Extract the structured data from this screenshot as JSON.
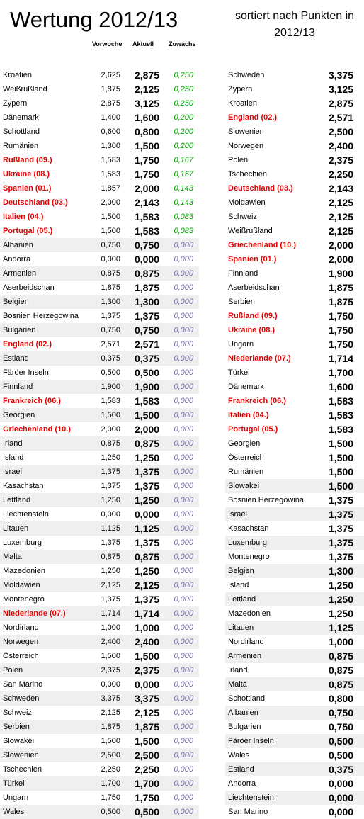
{
  "title": "Wertung 2012/13",
  "subtitle": "sortiert nach Punkten in 2012/13",
  "headers": {
    "prev": "Vorwoche",
    "current": "Aktuell",
    "gain": "Zuwachs"
  },
  "colors": {
    "highlight": "#e60000",
    "positive": "#00a000",
    "zero": "#7a6aa8",
    "shade": "#efefef"
  },
  "left_rows": [
    {
      "name": "Kroatien",
      "prev": "2,625",
      "cur": "2,875",
      "gain": "0,250",
      "red": false,
      "shade": false
    },
    {
      "name": "Weißrußland",
      "prev": "1,875",
      "cur": "2,125",
      "gain": "0,250",
      "red": false,
      "shade": false
    },
    {
      "name": "Zypern",
      "prev": "2,875",
      "cur": "3,125",
      "gain": "0,250",
      "red": false,
      "shade": false
    },
    {
      "name": "Dänemark",
      "prev": "1,400",
      "cur": "1,600",
      "gain": "0,200",
      "red": false,
      "shade": false
    },
    {
      "name": "Schottland",
      "prev": "0,600",
      "cur": "0,800",
      "gain": "0,200",
      "red": false,
      "shade": false
    },
    {
      "name": "Rumänien",
      "prev": "1,300",
      "cur": "1,500",
      "gain": "0,200",
      "red": false,
      "shade": false
    },
    {
      "name": "Rußland (09.)",
      "prev": "1,583",
      "cur": "1,750",
      "gain": "0,167",
      "red": true,
      "shade": false
    },
    {
      "name": "Ukraine (08.)",
      "prev": "1,583",
      "cur": "1,750",
      "gain": "0,167",
      "red": true,
      "shade": false
    },
    {
      "name": "Spanien (01.)",
      "prev": "1,857",
      "cur": "2,000",
      "gain": "0,143",
      "red": true,
      "shade": false
    },
    {
      "name": "Deutschland (03.)",
      "prev": "2,000",
      "cur": "2,143",
      "gain": "0,143",
      "red": true,
      "shade": false
    },
    {
      "name": "Italien (04.)",
      "prev": "1,500",
      "cur": "1,583",
      "gain": "0,083",
      "red": true,
      "shade": false
    },
    {
      "name": "Portugal (05.)",
      "prev": "1,500",
      "cur": "1,583",
      "gain": "0,083",
      "red": true,
      "shade": false
    },
    {
      "name": "Albanien",
      "prev": "0,750",
      "cur": "0,750",
      "gain": "0,000",
      "red": false,
      "shade": true
    },
    {
      "name": "Andorra",
      "prev": "0,000",
      "cur": "0,000",
      "gain": "0,000",
      "red": false,
      "shade": false
    },
    {
      "name": "Armenien",
      "prev": "0,875",
      "cur": "0,875",
      "gain": "0,000",
      "red": false,
      "shade": true
    },
    {
      "name": "Aserbeidschan",
      "prev": "1,875",
      "cur": "1,875",
      "gain": "0,000",
      "red": false,
      "shade": false
    },
    {
      "name": "Belgien",
      "prev": "1,300",
      "cur": "1,300",
      "gain": "0,000",
      "red": false,
      "shade": true
    },
    {
      "name": "Bosnien Herzegowina",
      "prev": "1,375",
      "cur": "1,375",
      "gain": "0,000",
      "red": false,
      "shade": false
    },
    {
      "name": "Bulgarien",
      "prev": "0,750",
      "cur": "0,750",
      "gain": "0,000",
      "red": false,
      "shade": true
    },
    {
      "name": "England (02.)",
      "prev": "2,571",
      "cur": "2,571",
      "gain": "0,000",
      "red": true,
      "shade": false
    },
    {
      "name": "Estland",
      "prev": "0,375",
      "cur": "0,375",
      "gain": "0,000",
      "red": false,
      "shade": true
    },
    {
      "name": "Färöer Inseln",
      "prev": "0,500",
      "cur": "0,500",
      "gain": "0,000",
      "red": false,
      "shade": false
    },
    {
      "name": "Finnland",
      "prev": "1,900",
      "cur": "1,900",
      "gain": "0,000",
      "red": false,
      "shade": true
    },
    {
      "name": "Frankreich (06.)",
      "prev": "1,583",
      "cur": "1,583",
      "gain": "0,000",
      "red": true,
      "shade": false
    },
    {
      "name": "Georgien",
      "prev": "1,500",
      "cur": "1,500",
      "gain": "0,000",
      "red": false,
      "shade": true
    },
    {
      "name": "Griechenland (10.)",
      "prev": "2,000",
      "cur": "2,000",
      "gain": "0,000",
      "red": true,
      "shade": false
    },
    {
      "name": "Irland",
      "prev": "0,875",
      "cur": "0,875",
      "gain": "0,000",
      "red": false,
      "shade": true
    },
    {
      "name": "Island",
      "prev": "1,250",
      "cur": "1,250",
      "gain": "0,000",
      "red": false,
      "shade": false
    },
    {
      "name": "Israel",
      "prev": "1,375",
      "cur": "1,375",
      "gain": "0,000",
      "red": false,
      "shade": true
    },
    {
      "name": "Kasachstan",
      "prev": "1,375",
      "cur": "1,375",
      "gain": "0,000",
      "red": false,
      "shade": false
    },
    {
      "name": "Lettland",
      "prev": "1,250",
      "cur": "1,250",
      "gain": "0,000",
      "red": false,
      "shade": true
    },
    {
      "name": "Liechtenstein",
      "prev": "0,000",
      "cur": "0,000",
      "gain": "0,000",
      "red": false,
      "shade": false
    },
    {
      "name": "Litauen",
      "prev": "1,125",
      "cur": "1,125",
      "gain": "0,000",
      "red": false,
      "shade": true
    },
    {
      "name": "Luxemburg",
      "prev": "1,375",
      "cur": "1,375",
      "gain": "0,000",
      "red": false,
      "shade": false
    },
    {
      "name": "Malta",
      "prev": "0,875",
      "cur": "0,875",
      "gain": "0,000",
      "red": false,
      "shade": true
    },
    {
      "name": "Mazedonien",
      "prev": "1,250",
      "cur": "1,250",
      "gain": "0,000",
      "red": false,
      "shade": false
    },
    {
      "name": "Moldawien",
      "prev": "2,125",
      "cur": "2,125",
      "gain": "0,000",
      "red": false,
      "shade": true
    },
    {
      "name": "Montenegro",
      "prev": "1,375",
      "cur": "1,375",
      "gain": "0,000",
      "red": false,
      "shade": false
    },
    {
      "name": "Niederlande (07.)",
      "prev": "1,714",
      "cur": "1,714",
      "gain": "0,000",
      "red": true,
      "shade": true
    },
    {
      "name": "Nordirland",
      "prev": "1,000",
      "cur": "1,000",
      "gain": "0,000",
      "red": false,
      "shade": false
    },
    {
      "name": "Norwegen",
      "prev": "2,400",
      "cur": "2,400",
      "gain": "0,000",
      "red": false,
      "shade": true
    },
    {
      "name": "Österreich",
      "prev": "1,500",
      "cur": "1,500",
      "gain": "0,000",
      "red": false,
      "shade": false
    },
    {
      "name": "Polen",
      "prev": "2,375",
      "cur": "2,375",
      "gain": "0,000",
      "red": false,
      "shade": true
    },
    {
      "name": "San Marino",
      "prev": "0,000",
      "cur": "0,000",
      "gain": "0,000",
      "red": false,
      "shade": false
    },
    {
      "name": "Schweden",
      "prev": "3,375",
      "cur": "3,375",
      "gain": "0,000",
      "red": false,
      "shade": true
    },
    {
      "name": "Schweiz",
      "prev": "2,125",
      "cur": "2,125",
      "gain": "0,000",
      "red": false,
      "shade": false
    },
    {
      "name": "Serbien",
      "prev": "1,875",
      "cur": "1,875",
      "gain": "0,000",
      "red": false,
      "shade": true
    },
    {
      "name": "Slowakei",
      "prev": "1,500",
      "cur": "1,500",
      "gain": "0,000",
      "red": false,
      "shade": false
    },
    {
      "name": "Slowenien",
      "prev": "2,500",
      "cur": "2,500",
      "gain": "0,000",
      "red": false,
      "shade": true
    },
    {
      "name": "Tschechien",
      "prev": "2,250",
      "cur": "2,250",
      "gain": "0,000",
      "red": false,
      "shade": false
    },
    {
      "name": "Türkei",
      "prev": "1,700",
      "cur": "1,700",
      "gain": "0,000",
      "red": false,
      "shade": true
    },
    {
      "name": "Ungarn",
      "prev": "1,750",
      "cur": "1,750",
      "gain": "0,000",
      "red": false,
      "shade": false
    },
    {
      "name": "Wales",
      "prev": "0,500",
      "cur": "0,500",
      "gain": "0,000",
      "red": false,
      "shade": true
    }
  ],
  "right_rows": [
    {
      "name": "Schweden",
      "cur": "3,375",
      "red": false,
      "shade": false
    },
    {
      "name": "Zypern",
      "cur": "3,125",
      "red": false,
      "shade": false
    },
    {
      "name": "Kroatien",
      "cur": "2,875",
      "red": false,
      "shade": false
    },
    {
      "name": "England (02.)",
      "cur": "2,571",
      "red": true,
      "shade": false
    },
    {
      "name": "Slowenien",
      "cur": "2,500",
      "red": false,
      "shade": false
    },
    {
      "name": "Norwegen",
      "cur": "2,400",
      "red": false,
      "shade": false
    },
    {
      "name": "Polen",
      "cur": "2,375",
      "red": false,
      "shade": false
    },
    {
      "name": "Tschechien",
      "cur": "2,250",
      "red": false,
      "shade": false
    },
    {
      "name": "Deutschland (03.)",
      "cur": "2,143",
      "red": true,
      "shade": false
    },
    {
      "name": "Moldawien",
      "cur": "2,125",
      "red": false,
      "shade": false
    },
    {
      "name": "Schweiz",
      "cur": "2,125",
      "red": false,
      "shade": false
    },
    {
      "name": "Weißrußland",
      "cur": "2,125",
      "red": false,
      "shade": false
    },
    {
      "name": "Griechenland (10.)",
      "cur": "2,000",
      "red": true,
      "shade": false
    },
    {
      "name": "Spanien (01.)",
      "cur": "2,000",
      "red": true,
      "shade": false
    },
    {
      "name": "Finnland",
      "cur": "1,900",
      "red": false,
      "shade": false
    },
    {
      "name": "Aserbeidschan",
      "cur": "1,875",
      "red": false,
      "shade": false
    },
    {
      "name": "Serbien",
      "cur": "1,875",
      "red": false,
      "shade": false
    },
    {
      "name": "Rußland (09.)",
      "cur": "1,750",
      "red": true,
      "shade": false
    },
    {
      "name": "Ukraine (08.)",
      "cur": "1,750",
      "red": true,
      "shade": false
    },
    {
      "name": "Ungarn",
      "cur": "1,750",
      "red": false,
      "shade": false
    },
    {
      "name": "Niederlande (07.)",
      "cur": "1,714",
      "red": true,
      "shade": false
    },
    {
      "name": "Türkei",
      "cur": "1,700",
      "red": false,
      "shade": false
    },
    {
      "name": "Dänemark",
      "cur": "1,600",
      "red": false,
      "shade": false
    },
    {
      "name": "Frankreich (06.)",
      "cur": "1,583",
      "red": true,
      "shade": false
    },
    {
      "name": "Italien (04.)",
      "cur": "1,583",
      "red": true,
      "shade": false
    },
    {
      "name": "Portugal (05.)",
      "cur": "1,583",
      "red": true,
      "shade": false
    },
    {
      "name": "Georgien",
      "cur": "1,500",
      "red": false,
      "shade": false
    },
    {
      "name": "Österreich",
      "cur": "1,500",
      "red": false,
      "shade": false
    },
    {
      "name": "Rumänien",
      "cur": "1,500",
      "red": false,
      "shade": false
    },
    {
      "name": "Slowakei",
      "cur": "1,500",
      "red": false,
      "shade": true
    },
    {
      "name": "Bosnien Herzegowina",
      "cur": "1,375",
      "red": false,
      "shade": false
    },
    {
      "name": "Israel",
      "cur": "1,375",
      "red": false,
      "shade": true
    },
    {
      "name": "Kasachstan",
      "cur": "1,375",
      "red": false,
      "shade": false
    },
    {
      "name": "Luxemburg",
      "cur": "1,375",
      "red": false,
      "shade": true
    },
    {
      "name": "Montenegro",
      "cur": "1,375",
      "red": false,
      "shade": false
    },
    {
      "name": "Belgien",
      "cur": "1,300",
      "red": false,
      "shade": true
    },
    {
      "name": "Island",
      "cur": "1,250",
      "red": false,
      "shade": false
    },
    {
      "name": "Lettland",
      "cur": "1,250",
      "red": false,
      "shade": true
    },
    {
      "name": "Mazedonien",
      "cur": "1,250",
      "red": false,
      "shade": false
    },
    {
      "name": "Litauen",
      "cur": "1,125",
      "red": false,
      "shade": true
    },
    {
      "name": "Nordirland",
      "cur": "1,000",
      "red": false,
      "shade": false
    },
    {
      "name": "Armenien",
      "cur": "0,875",
      "red": false,
      "shade": true
    },
    {
      "name": "Irland",
      "cur": "0,875",
      "red": false,
      "shade": false
    },
    {
      "name": "Malta",
      "cur": "0,875",
      "red": false,
      "shade": true
    },
    {
      "name": "Schottland",
      "cur": "0,800",
      "red": false,
      "shade": false
    },
    {
      "name": "Albanien",
      "cur": "0,750",
      "red": false,
      "shade": true
    },
    {
      "name": "Bulgarien",
      "cur": "0,750",
      "red": false,
      "shade": false
    },
    {
      "name": "Färöer Inseln",
      "cur": "0,500",
      "red": false,
      "shade": true
    },
    {
      "name": "Wales",
      "cur": "0,500",
      "red": false,
      "shade": false
    },
    {
      "name": "Estland",
      "cur": "0,375",
      "red": false,
      "shade": true
    },
    {
      "name": "Andorra",
      "cur": "0,000",
      "red": false,
      "shade": false
    },
    {
      "name": "Liechtenstein",
      "cur": "0,000",
      "red": false,
      "shade": true
    },
    {
      "name": "San Marino",
      "cur": "0,000",
      "red": false,
      "shade": false
    }
  ]
}
